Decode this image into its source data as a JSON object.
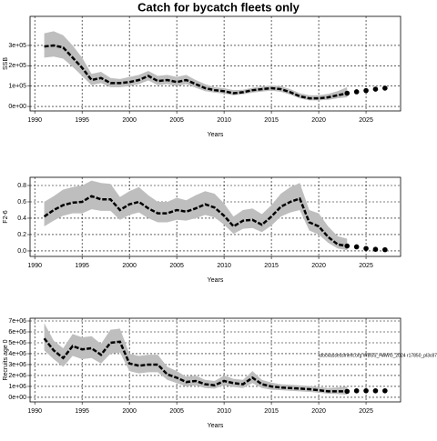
{
  "title": "Catch for bycatch fleets only",
  "chart_data": [
    {
      "type": "line",
      "xlabel": "Years",
      "ylabel": "SSB",
      "x": [
        1991,
        1992,
        1993,
        1994,
        1995,
        1996,
        1997,
        1998,
        1999,
        2000,
        2001,
        2002,
        2003,
        2004,
        2005,
        2006,
        2007,
        2008,
        2009,
        2010,
        2011,
        2012,
        2013,
        2014,
        2015,
        2016,
        2017,
        2018,
        2019,
        2020,
        2021,
        2022,
        2023
      ],
      "values": [
        295000,
        300000,
        290000,
        240000,
        190000,
        130000,
        140000,
        115000,
        115000,
        120000,
        130000,
        150000,
        125000,
        130000,
        120000,
        130000,
        110000,
        90000,
        80000,
        75000,
        65000,
        70000,
        80000,
        85000,
        90000,
        85000,
        70000,
        50000,
        40000,
        40000,
        45000,
        55000,
        65000
      ],
      "upper": [
        360000,
        370000,
        350000,
        300000,
        240000,
        160000,
        170000,
        140000,
        135000,
        145000,
        155000,
        175000,
        150000,
        155000,
        145000,
        155000,
        130000,
        110000,
        95000,
        90000,
        80000,
        82000,
        92000,
        98000,
        103000,
        100000,
        85000,
        65000,
        55000,
        55000,
        62000,
        75000,
        95000
      ],
      "lower": [
        240000,
        245000,
        235000,
        195000,
        150000,
        105000,
        115000,
        95000,
        95000,
        100000,
        110000,
        128000,
        105000,
        110000,
        100000,
        110000,
        92000,
        75000,
        68000,
        63000,
        55000,
        60000,
        68000,
        73000,
        78000,
        72000,
        58000,
        40000,
        30000,
        30000,
        33000,
        40000,
        45000
      ],
      "forecast_x": [
        2023,
        2024,
        2025,
        2026,
        2027
      ],
      "forecast_values": [
        65000,
        72000,
        78000,
        85000,
        90000
      ],
      "xlim": [
        1989.5,
        2028.65
      ],
      "xticks": [
        1990,
        1995,
        2000,
        2005,
        2010,
        2015,
        2020,
        2025
      ],
      "ylim": [
        -22000,
        443000
      ],
      "yticks": [
        {
          "value": 0,
          "label": "0e+00"
        },
        {
          "value": 100000,
          "label": "1e+05"
        },
        {
          "value": 200000,
          "label": "2e+05"
        },
        {
          "value": 300000,
          "label": "3e+05"
        }
      ],
      "grid": true,
      "band_color": "#bebebe",
      "line_color": "#000000"
    },
    {
      "type": "line",
      "xlabel": "Years",
      "ylabel": "F2-6",
      "x": [
        1991,
        1992,
        1993,
        1994,
        1995,
        1996,
        1997,
        1998,
        1999,
        2000,
        2001,
        2002,
        2003,
        2004,
        2005,
        2006,
        2007,
        2008,
        2009,
        2010,
        2011,
        2012,
        2013,
        2014,
        2015,
        2016,
        2017,
        2018,
        2019,
        2020,
        2021,
        2022,
        2023
      ],
      "values": [
        0.42,
        0.5,
        0.56,
        0.59,
        0.6,
        0.67,
        0.63,
        0.63,
        0.5,
        0.57,
        0.6,
        0.52,
        0.46,
        0.46,
        0.5,
        0.48,
        0.52,
        0.57,
        0.53,
        0.43,
        0.3,
        0.37,
        0.38,
        0.32,
        0.42,
        0.54,
        0.6,
        0.64,
        0.35,
        0.3,
        0.17,
        0.08,
        0.06
      ],
      "upper": [
        0.6,
        0.67,
        0.75,
        0.78,
        0.8,
        0.86,
        0.83,
        0.82,
        0.66,
        0.73,
        0.78,
        0.68,
        0.6,
        0.6,
        0.65,
        0.62,
        0.68,
        0.73,
        0.7,
        0.58,
        0.42,
        0.5,
        0.52,
        0.45,
        0.56,
        0.7,
        0.78,
        0.83,
        0.5,
        0.46,
        0.3,
        0.18,
        0.15
      ],
      "lower": [
        0.3,
        0.37,
        0.43,
        0.46,
        0.46,
        0.51,
        0.49,
        0.49,
        0.38,
        0.44,
        0.47,
        0.4,
        0.35,
        0.35,
        0.38,
        0.37,
        0.4,
        0.44,
        0.41,
        0.32,
        0.21,
        0.27,
        0.28,
        0.23,
        0.31,
        0.42,
        0.47,
        0.5,
        0.25,
        0.2,
        0.1,
        0.03,
        0.01
      ],
      "forecast_x": [
        2023,
        2024,
        2025,
        2026,
        2027
      ],
      "forecast_values": [
        0.06,
        0.05,
        0.03,
        0.02,
        0.015
      ],
      "xlim": [
        1989.5,
        2028.65
      ],
      "xticks": [
        1990,
        1995,
        2000,
        2005,
        2010,
        2015,
        2020,
        2025
      ],
      "ylim": [
        -0.067,
        0.9
      ],
      "yticks": [
        {
          "value": 0,
          "label": "0.0"
        },
        0.2,
        0.4,
        0.6,
        0.8
      ],
      "grid": true,
      "band_color": "#bebebe",
      "line_color": "#000000"
    },
    {
      "type": "line",
      "xlabel": "Years",
      "ylabel": "Recruits age 0",
      "annotation": "stockassessment.org WBSS_HAWG_2024 r17850_pl3c87",
      "x": [
        1991,
        1992,
        1993,
        1994,
        1995,
        1996,
        1997,
        1998,
        1999,
        2000,
        2001,
        2002,
        2003,
        2004,
        2005,
        2006,
        2007,
        2008,
        2009,
        2010,
        2011,
        2012,
        2013,
        2014,
        2015,
        2016,
        2017,
        2018,
        2019,
        2020,
        2021,
        2022,
        2023
      ],
      "values": [
        5400000,
        4300000,
        3600000,
        4700000,
        4400000,
        4500000,
        3900000,
        5000000,
        5100000,
        3100000,
        2900000,
        3000000,
        3000000,
        2100000,
        1800000,
        1400000,
        1500000,
        1200000,
        1100000,
        1500000,
        1300000,
        1200000,
        1800000,
        1200000,
        1000000,
        900000,
        850000,
        800000,
        750000,
        650000,
        550000,
        550000,
        550000
      ],
      "upper": [
        6800000,
        5200000,
        4500000,
        5800000,
        5500000,
        5600000,
        4900000,
        6200000,
        6300000,
        4000000,
        3800000,
        3900000,
        3900000,
        2800000,
        2400000,
        1900000,
        2000000,
        1600000,
        1500000,
        2000000,
        1700000,
        1600000,
        2400000,
        1600000,
        1350000,
        1200000,
        1150000,
        1100000,
        1050000,
        950000,
        850000,
        900000,
        1000000
      ],
      "lower": [
        4300000,
        3500000,
        2800000,
        3800000,
        3500000,
        3600000,
        3100000,
        4000000,
        4100000,
        2400000,
        2200000,
        2300000,
        2300000,
        1600000,
        1300000,
        1000000,
        1100000,
        850000,
        800000,
        1100000,
        950000,
        850000,
        1300000,
        850000,
        700000,
        650000,
        600000,
        550000,
        500000,
        420000,
        330000,
        300000,
        250000
      ],
      "forecast_x": [
        2023,
        2024,
        2025,
        2026,
        2027
      ],
      "forecast_values": [
        550000,
        600000,
        600000,
        600000,
        600000
      ],
      "xlim": [
        1989.5,
        2028.65
      ],
      "xticks": [
        1990,
        1995,
        2000,
        2005,
        2010,
        2015,
        2020,
        2025
      ],
      "ylim": [
        -420000,
        7250000
      ],
      "yticks": [
        {
          "value": 0,
          "label": "0e+00"
        },
        {
          "value": 1000000,
          "label": "1e+06"
        },
        {
          "value": 2000000,
          "label": "2e+06"
        },
        {
          "value": 3000000,
          "label": "3e+06"
        },
        {
          "value": 4000000,
          "label": "4e+06"
        },
        {
          "value": 5000000,
          "label": "5e+06"
        },
        {
          "value": 6000000,
          "label": "6e+06"
        },
        {
          "value": 7000000,
          "label": "7e+06"
        }
      ],
      "grid": true,
      "band_color": "#bebebe",
      "line_color": "#000000"
    }
  ]
}
